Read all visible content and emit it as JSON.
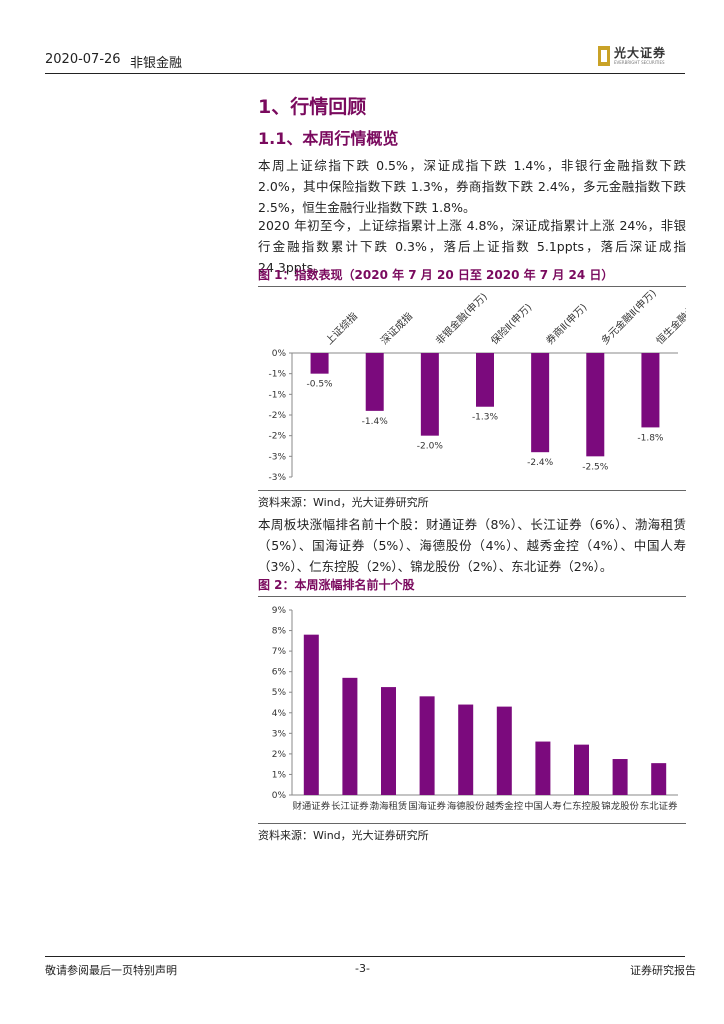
{
  "header": {
    "date": "2020-07-26",
    "sector": "非银金融",
    "logo_cn": "光大证券",
    "logo_en": "EVERBRIGHT SECURITIES"
  },
  "section_title": "1、行情回顾",
  "subsection_title": "1.1、本周行情概览",
  "paragraph1": "本周上证综指下跌 0.5%，深证成指下跌 1.4%，非银行金融指数下跌 2.0%，其中保险指数下跌 1.3%，券商指数下跌 2.4%，多元金融指数下跌 2.5%，恒生金融行业指数下跌 1.8%。",
  "paragraph2": "2020 年初至今，上证综指累计上涨 4.8%，深证成指累计上涨 24%，非银行金融指数累计下跌 0.3%，落后上证指数 5.1ppts，落后深证成指 24.3ppts。",
  "figure1_title": "图 1：指数表现（2020 年 7 月 20 日至 2020 年 7 月 24 日）",
  "figure1_source": "资料来源：Wind，光大证券研究所",
  "paragraph3": "本周板块涨幅排名前十个股：财通证券（8%）、长江证券（6%）、渤海租赁（5%）、国海证券（5%）、海德股份（4%）、越秀金控（4%）、中国人寿（3%）、仁东控股（2%）、锦龙股份（2%）、东北证券（2%）。",
  "figure2_title": "图 2：本周涨幅排名前十个股",
  "figure2_source": "资料来源：Wind，光大证券研究所",
  "footer": {
    "left": "敬请参阅最后一页特别声明",
    "center": "-3-",
    "right": "证券研究报告"
  },
  "colors": {
    "accent": "#7a0a5e",
    "bar": "#7b0a7d"
  },
  "chart_data": [
    {
      "type": "bar",
      "categories": [
        "上证综指",
        "深证成指",
        "非银金融(申万)",
        "保险Ⅱ(申万)",
        "券商Ⅱ(申万)",
        "多元金融Ⅱ(申万)",
        "恒生金融业"
      ],
      "values": [
        -0.5,
        -1.4,
        -2.0,
        -1.3,
        -2.4,
        -2.5,
        -1.8
      ],
      "labels": [
        "-0.5%",
        "-1.4%",
        "-2.0%",
        "-1.3%",
        "-2.4%",
        "-2.5%",
        "-1.8%"
      ],
      "yticks": [
        "0%",
        "-1%",
        "-1%",
        "-2%",
        "-2%",
        "-3%",
        "-3%"
      ],
      "ylim": [
        -3.0,
        0
      ]
    },
    {
      "type": "bar",
      "categories": [
        "财通证券",
        "长江证券",
        "渤海租赁",
        "国海证券",
        "海德股份",
        "越秀金控",
        "中国人寿",
        "仁东控股",
        "锦龙股份",
        "东北证券"
      ],
      "values": [
        7.8,
        5.7,
        5.25,
        4.8,
        4.4,
        4.3,
        2.6,
        2.45,
        1.75,
        1.55
      ],
      "yticks": [
        "0%",
        "1%",
        "2%",
        "3%",
        "4%",
        "5%",
        "6%",
        "7%",
        "8%",
        "9%"
      ],
      "ylim": [
        0,
        9
      ]
    }
  ]
}
